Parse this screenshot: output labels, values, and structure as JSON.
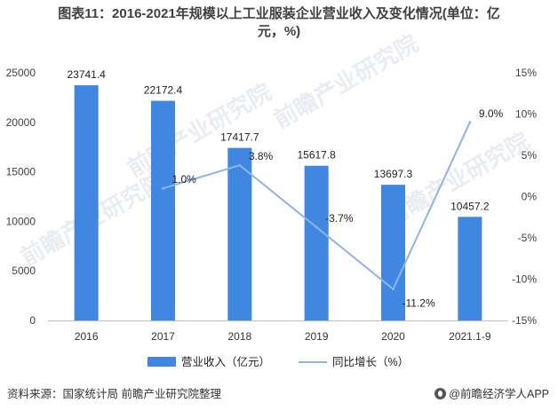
{
  "title_line1": "图表11：2016-2021年规模以上工业服装企业营业收入及变化情况(单位：亿",
  "title_line2": "元，%)",
  "source": "资料来源：国家统计局 前瞻产业研究院整理",
  "brand": "@前瞻经济学人APP",
  "watermark": "前瞻产业研究院",
  "colors": {
    "bar": "#3f87e0",
    "line": "#8cb4ec",
    "axis": "#bfbfbf",
    "text": "#333333"
  },
  "chart_data": {
    "type": "bar+line",
    "categories": [
      "2016",
      "2017",
      "2018",
      "2019",
      "2020",
      "2021.1-9"
    ],
    "series": [
      {
        "name": "营业收入（亿元）",
        "type": "bar",
        "axis": "left",
        "values": [
          23741.4,
          22172.4,
          17417.7,
          15617.8,
          13697.3,
          10457.2
        ],
        "labels": [
          "23741.4",
          "22172.4",
          "17417.7",
          "15617.8",
          "13697.3",
          "10457.2"
        ]
      },
      {
        "name": "同比增长（%）",
        "type": "line",
        "axis": "right",
        "values": [
          null,
          1.0,
          3.8,
          -3.7,
          -11.2,
          9.0
        ],
        "labels": [
          "",
          "1.0%",
          "3.8%",
          "-3.7%",
          "-11.2%",
          "9.0%"
        ]
      }
    ],
    "y_left": {
      "min": 0,
      "max": 25000,
      "ticks": [
        "0",
        "5000",
        "10000",
        "15000",
        "20000",
        "25000"
      ]
    },
    "y_right": {
      "min": -15,
      "max": 15,
      "ticks": [
        "-15%",
        "-10%",
        "-5%",
        "0%",
        "5%",
        "10%",
        "15%"
      ]
    },
    "legend_position": "bottom",
    "grid": false
  }
}
